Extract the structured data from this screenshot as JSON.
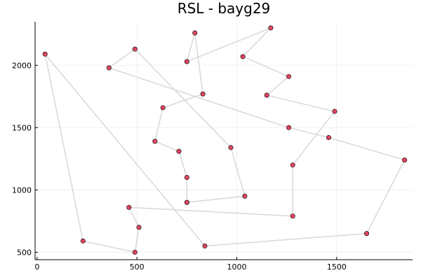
{
  "chart_data": {
    "type": "line",
    "title": "RSL - bayg29",
    "xlabel": "",
    "ylabel": "",
    "xlim": [
      -10,
      1880
    ],
    "ylim": [
      440,
      2350
    ],
    "xticks": [
      0,
      500,
      1000,
      1500
    ],
    "yticks": [
      500,
      1000,
      1500,
      2000
    ],
    "grid": true,
    "legend": "none",
    "colors": {
      "line": "#d8d8d8",
      "marker": "#e0465e",
      "axis": "#000000"
    },
    "series": [
      {
        "x": [
          40,
          230,
          490,
          510,
          460,
          1280,
          1280,
          1490,
          1150,
          1260,
          1030,
          1170,
          750,
          790,
          830,
          630,
          590,
          710,
          750,
          750,
          1040,
          970,
          490,
          360,
          1260,
          1460,
          1840,
          1650,
          840,
          40
        ],
        "y": [
          2090,
          590,
          500,
          700,
          860,
          790,
          1200,
          1630,
          1760,
          1910,
          2070,
          2300,
          2030,
          2260,
          1770,
          1660,
          1390,
          1310,
          1100,
          900,
          950,
          1340,
          2130,
          1980,
          1500,
          1420,
          1240,
          650,
          550,
          2090
        ]
      }
    ]
  }
}
